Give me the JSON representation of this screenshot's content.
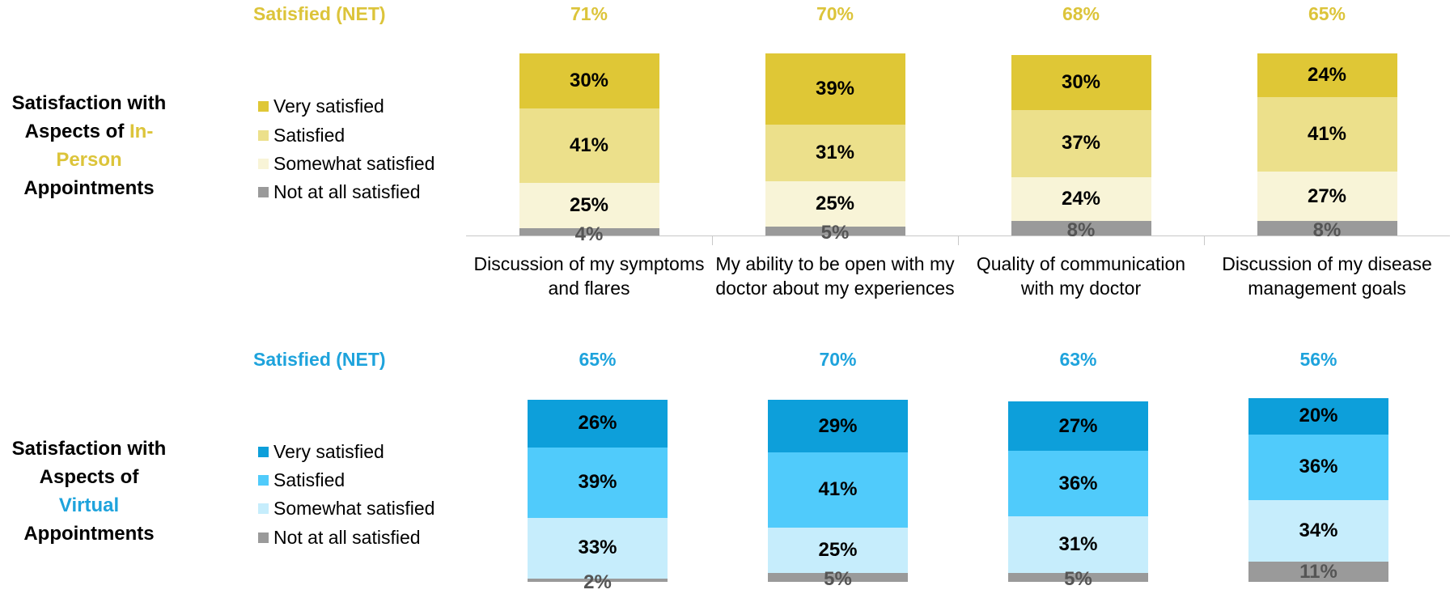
{
  "chart_data": [
    {
      "type": "stacked_bar",
      "title_before": "Satisfaction with Aspects of",
      "title_highlight": "In-Person",
      "title_after": "Appointments",
      "highlight_color": "#dcc43a",
      "net_title": "Satisfied (NET)",
      "net_values": [
        71,
        70,
        68,
        65
      ],
      "net_labels": [
        "71%",
        "70%",
        "68%",
        "65%"
      ],
      "categories": [
        "Discussion of my symptoms and flares",
        "My ability to be open with my doctor about my experiences",
        "Quality of communication with my doctor",
        "Discussion of my disease management goals"
      ],
      "series": [
        {
          "name": "Very satisfied",
          "color": "#dfc736",
          "label_color": "#000000",
          "values": [
            30,
            39,
            30,
            24
          ],
          "value_labels": [
            "30%",
            "39%",
            "30%",
            "24%"
          ]
        },
        {
          "name": "Satisfied",
          "color": "#ece08b",
          "label_color": "#000000",
          "values": [
            41,
            31,
            37,
            41
          ],
          "value_labels": [
            "41%",
            "31%",
            "37%",
            "41%"
          ]
        },
        {
          "name": "Somewhat satisfied",
          "color": "#f8f4d7",
          "label_color": "#000000",
          "values": [
            25,
            25,
            24,
            27
          ],
          "value_labels": [
            "25%",
            "25%",
            "24%",
            "27%"
          ]
        },
        {
          "name": "Not at all satisfied",
          "color": "#9a9a9a",
          "label_color": "#555555",
          "values": [
            4,
            5,
            8,
            8
          ],
          "value_labels": [
            "4%",
            "5%",
            "8%",
            "8%"
          ]
        }
      ]
    },
    {
      "type": "stacked_bar",
      "title_before": "Satisfaction with Aspects of",
      "title_highlight": "Virtual",
      "title_after": "Appointments",
      "highlight_color": "#1ea3dc",
      "net_title": "Satisfied (NET)",
      "net_values": [
        65,
        70,
        63,
        56
      ],
      "net_labels": [
        "65%",
        "70%",
        "63%",
        "56%"
      ],
      "series": [
        {
          "name": "Very satisfied",
          "color": "#0d9fda",
          "label_color": "#000000",
          "values": [
            26,
            29,
            27,
            20
          ],
          "value_labels": [
            "26%",
            "29%",
            "27%",
            "20%"
          ]
        },
        {
          "name": "Satisfied",
          "color": "#50cbfb",
          "label_color": "#000000",
          "values": [
            39,
            41,
            36,
            36
          ],
          "value_labels": [
            "39%",
            "41%",
            "36%",
            "36%"
          ]
        },
        {
          "name": "Somewhat satisfied",
          "color": "#c6edfc",
          "label_color": "#000000",
          "values": [
            33,
            25,
            31,
            34
          ],
          "value_labels": [
            "33%",
            "25%",
            "31%",
            "34%"
          ]
        },
        {
          "name": "Not at all satisfied",
          "color": "#9a9a9a",
          "label_color": "#555555",
          "values": [
            2,
            5,
            5,
            11
          ],
          "value_labels": [
            "2%",
            "5%",
            "5%",
            "11%"
          ]
        }
      ]
    }
  ]
}
